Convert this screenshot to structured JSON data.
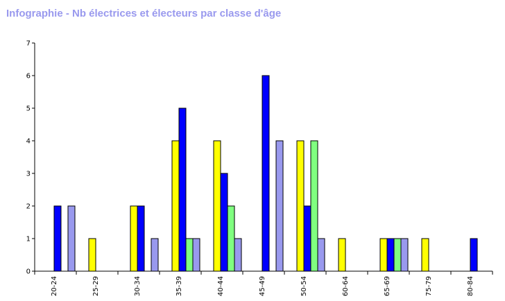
{
  "title": "Infographie - Nb électrices et électeurs par classe d'âge",
  "chart_data": {
    "type": "bar",
    "title": "Infographie - Nb électrices et électeurs par classe d'âge",
    "xlabel": "",
    "ylabel": "",
    "ylim": [
      0,
      7
    ],
    "yticks": [
      "0",
      "1",
      "2",
      "3",
      "4",
      "5",
      "6",
      "7"
    ],
    "categories": [
      "20-24",
      "25-29",
      "30-34",
      "35-39",
      "40-44",
      "45-49",
      "50-54",
      "60-64",
      "65-69",
      "75-79",
      "80-84"
    ],
    "series": [
      {
        "color": "#ffff00",
        "values": [
          0,
          1,
          2,
          4,
          4,
          0,
          4,
          1,
          1,
          1,
          0
        ]
      },
      {
        "color": "#0000ff",
        "values": [
          2,
          0,
          2,
          5,
          3,
          6,
          2,
          0,
          1,
          0,
          1
        ]
      },
      {
        "color": "#80ff80",
        "values": [
          0,
          0,
          0,
          1,
          2,
          0,
          4,
          0,
          1,
          0,
          0
        ]
      },
      {
        "color": "#9999ee",
        "values": [
          2,
          0,
          1,
          1,
          1,
          4,
          1,
          0,
          1,
          0,
          0
        ]
      }
    ],
    "grid": false,
    "legend": "none"
  }
}
